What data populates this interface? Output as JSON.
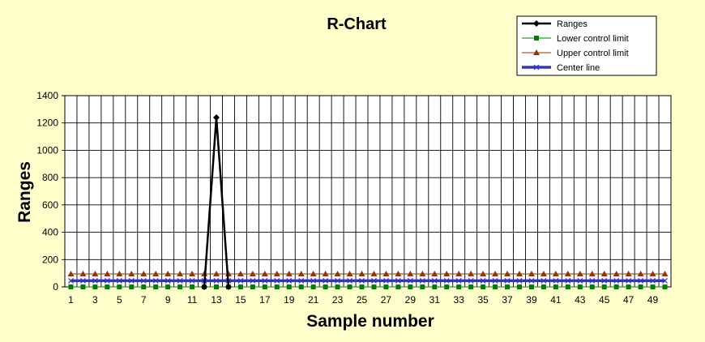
{
  "chart_data": {
    "type": "line",
    "title": "R-Chart",
    "xlabel": "Sample number",
    "ylabel": "Ranges",
    "ylim": [
      0,
      1400
    ],
    "xlim": [
      1,
      50
    ],
    "y_ticks": [
      "0",
      "200",
      "400",
      "600",
      "800",
      "1000",
      "1200",
      "1400"
    ],
    "x_ticks": [
      "1",
      "3",
      "5",
      "7",
      "9",
      "11",
      "13",
      "15",
      "17",
      "19",
      "21",
      "23",
      "25",
      "27",
      "29",
      "31",
      "33",
      "35",
      "37",
      "39",
      "41",
      "43",
      "45",
      "47",
      "49"
    ],
    "grid": true,
    "legend_position": "top-right",
    "x": [
      1,
      2,
      3,
      4,
      5,
      6,
      7,
      8,
      9,
      10,
      11,
      12,
      13,
      14,
      15,
      16,
      17,
      18,
      19,
      20,
      21,
      22,
      23,
      24,
      25,
      26,
      27,
      28,
      29,
      30,
      31,
      32,
      33,
      34,
      35,
      36,
      37,
      38,
      39,
      40,
      41,
      42,
      43,
      44,
      45,
      46,
      47,
      48,
      49,
      50
    ],
    "series": [
      {
        "name": "Ranges",
        "color": "#000000",
        "marker": "diamond",
        "values": [
          null,
          null,
          null,
          null,
          null,
          null,
          null,
          null,
          null,
          null,
          null,
          0,
          1240,
          0,
          null,
          null,
          null,
          null,
          null,
          null,
          null,
          null,
          null,
          null,
          null,
          null,
          null,
          null,
          null,
          null,
          null,
          null,
          null,
          null,
          null,
          null,
          null,
          null,
          null,
          null,
          null,
          null,
          null,
          null,
          null,
          null,
          null,
          null,
          null,
          null
        ]
      },
      {
        "name": "Lower control limit",
        "color": "#008000",
        "marker": "square",
        "values": [
          0,
          0,
          0,
          0,
          0,
          0,
          0,
          0,
          0,
          0,
          0,
          0,
          0,
          0,
          0,
          0,
          0,
          0,
          0,
          0,
          0,
          0,
          0,
          0,
          0,
          0,
          0,
          0,
          0,
          0,
          0,
          0,
          0,
          0,
          0,
          0,
          0,
          0,
          0,
          0,
          0,
          0,
          0,
          0,
          0,
          0,
          0,
          0,
          0,
          0
        ]
      },
      {
        "name": "Upper control limit",
        "color": "#993300",
        "marker": "triangle",
        "values": [
          95,
          95,
          95,
          95,
          95,
          95,
          95,
          95,
          95,
          95,
          95,
          95,
          95,
          95,
          95,
          95,
          95,
          95,
          95,
          95,
          95,
          95,
          95,
          95,
          95,
          95,
          95,
          95,
          95,
          95,
          95,
          95,
          95,
          95,
          95,
          95,
          95,
          95,
          95,
          95,
          95,
          95,
          95,
          95,
          95,
          95,
          95,
          95,
          95,
          95
        ]
      },
      {
        "name": "Center line",
        "color": "#3333cc",
        "marker": "x",
        "values": [
          45,
          45,
          45,
          45,
          45,
          45,
          45,
          45,
          45,
          45,
          45,
          45,
          45,
          45,
          45,
          45,
          45,
          45,
          45,
          45,
          45,
          45,
          45,
          45,
          45,
          45,
          45,
          45,
          45,
          45,
          45,
          45,
          45,
          45,
          45,
          45,
          45,
          45,
          45,
          45,
          45,
          45,
          45,
          45,
          45,
          45,
          45,
          45,
          45,
          45
        ]
      }
    ]
  }
}
